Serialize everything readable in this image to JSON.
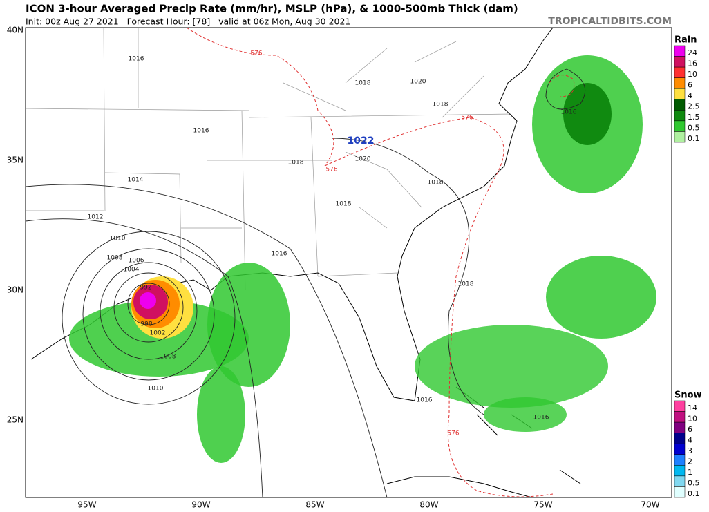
{
  "header": {
    "title": "ICON 3-hour Averaged Precip Rate (mm/hr), MSLP (hPa), & 1000-500mb Thick (dam)",
    "subtitle": "Init: 00z Aug 27 2021   Forecast Hour: [78]   valid at 06z Mon, Aug 30 2021",
    "brand": "TROPICALTIDBITS.COM"
  },
  "axes": {
    "lat_labels": [
      "40N",
      "35N",
      "30N",
      "25N"
    ],
    "lon_labels": [
      "95W",
      "90W",
      "85W",
      "80W",
      "75W",
      "70W"
    ]
  },
  "map": {
    "contour_labels": [
      "1016",
      "1016",
      "1014",
      "1012",
      "1010",
      "1008",
      "1006",
      "1004",
      "1018",
      "1020",
      "1018",
      "1018",
      "1018",
      "1016",
      "1018",
      "1016",
      "1016",
      "1016",
      "1010",
      "1008",
      "1002",
      "998",
      "992",
      "1020",
      "1022",
      "576",
      "576",
      "576",
      "576",
      "1018"
    ]
  },
  "legends": {
    "rain": {
      "title": "Rain",
      "items": [
        {
          "label": "24",
          "color": "#ee00ee"
        },
        {
          "label": "16",
          "color": "#d01060"
        },
        {
          "label": "10",
          "color": "#ff3030"
        },
        {
          "label": "6",
          "color": "#ff8c00"
        },
        {
          "label": "4",
          "color": "#ffe040"
        },
        {
          "label": "2.5",
          "color": "#005a00"
        },
        {
          "label": "1.5",
          "color": "#108a10"
        },
        {
          "label": "0.5",
          "color": "#30c830"
        },
        {
          "label": "0.1",
          "color": "#b0f0a0"
        }
      ]
    },
    "snow": {
      "title": "Snow",
      "items": [
        {
          "label": "14",
          "color": "#ff40a0"
        },
        {
          "label": "10",
          "color": "#c01080"
        },
        {
          "label": "6",
          "color": "#800080"
        },
        {
          "label": "4",
          "color": "#00008b"
        },
        {
          "label": "3",
          "color": "#0000d0"
        },
        {
          "label": "2",
          "color": "#1e80ff"
        },
        {
          "label": "1",
          "color": "#00b8f0"
        },
        {
          "label": "0.5",
          "color": "#80d8f0"
        },
        {
          "label": "0.1",
          "color": "#e0ffff"
        }
      ]
    }
  }
}
